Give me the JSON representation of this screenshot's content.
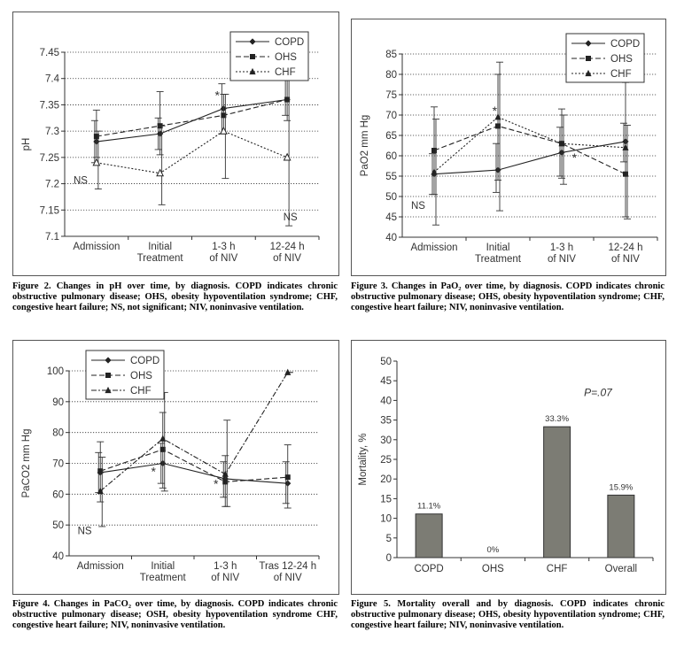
{
  "chart_data": [
    {
      "type": "line",
      "ylabel": "pH",
      "ylim": [
        7.1,
        7.45
      ],
      "yticks": [
        "7.1",
        "7.15",
        "7.2",
        "7.25",
        "7.3",
        "7.35",
        "7.4",
        "7.45"
      ],
      "categories": [
        [
          "Admission"
        ],
        [
          "Initial",
          "Treatment"
        ],
        [
          "1-3 h",
          "of NIV"
        ],
        [
          "12-24 h",
          "of NIV"
        ]
      ],
      "series": [
        {
          "name": "COPD",
          "marker": "diamond",
          "dash": "solid",
          "values": [
            7.28,
            7.295,
            7.343,
            7.36
          ],
          "upper": [
            7.32,
            7.325,
            7.39,
            7.4
          ],
          "lower": [
            7.24,
            7.265,
            7.295,
            7.33
          ]
        },
        {
          "name": "OHS",
          "marker": "square",
          "dash": "dashed",
          "values": [
            7.29,
            7.31,
            7.33,
            7.36
          ],
          "upper": [
            7.34,
            7.375,
            7.37,
            7.4
          ],
          "lower": [
            7.25,
            7.255,
            7.295,
            7.32
          ]
        },
        {
          "name": "CHF",
          "marker": "triangle-open",
          "dash": "dotted",
          "values": [
            7.24,
            7.22,
            7.3,
            7.25
          ],
          "upper": [
            7.3,
            7.31,
            7.37,
            7.4
          ],
          "lower": [
            7.19,
            7.16,
            7.21,
            7.12
          ]
        }
      ],
      "annotations": [
        {
          "text": "*",
          "x": 1.9,
          "y": 7.36
        },
        {
          "text": "NS",
          "x": -0.25,
          "y": 7.2
        },
        {
          "text": "NS",
          "x": 3.05,
          "y": 7.13
        }
      ]
    },
    {
      "type": "line",
      "ylabel": "PaO2 mm Hg",
      "ylim": [
        40,
        85
      ],
      "yticks": [
        "40",
        "45",
        "50",
        "55",
        "60",
        "65",
        "70",
        "75",
        "80",
        "85"
      ],
      "categories": [
        [
          "Admission"
        ],
        [
          "Initial",
          "Treatment"
        ],
        [
          "1-3 h",
          "of NIV"
        ],
        [
          "12-24 h",
          "of NIV"
        ]
      ],
      "series": [
        {
          "name": "COPD",
          "marker": "diamond",
          "dash": "solid",
          "values": [
            55.5,
            56.5,
            60.8,
            63.5
          ],
          "upper": [
            60.5,
            63,
            67,
            68
          ],
          "lower": [
            50.5,
            51,
            55,
            58.5
          ]
        },
        {
          "name": "OHS",
          "marker": "square",
          "dash": "dashed",
          "values": [
            61.3,
            67.3,
            63.0,
            55.5
          ],
          "upper": [
            72,
            80,
            71.5,
            78
          ],
          "lower": [
            50.5,
            54,
            54.5,
            45
          ]
        },
        {
          "name": "CHF",
          "marker": "triangle",
          "dash": "dotted",
          "values": [
            56,
            69.5,
            63,
            62
          ],
          "upper": [
            69,
            83,
            70,
            67.5
          ],
          "lower": [
            43,
            46.5,
            53,
            44.5
          ]
        }
      ],
      "annotations": [
        {
          "text": "*",
          "x": 0.95,
          "y": 70
        },
        {
          "text": "*",
          "x": 2.2,
          "y": 58.5
        },
        {
          "text": "NS",
          "x": -0.25,
          "y": 47
        }
      ]
    },
    {
      "type": "line",
      "ylabel": "PaCO2 mm Hg",
      "ylim": [
        40,
        100
      ],
      "yticks": [
        "40",
        "50",
        "60",
        "70",
        "80",
        "90",
        "100"
      ],
      "categories": [
        [
          "Admission"
        ],
        [
          "Initial",
          "Treatment"
        ],
        [
          "1-3 h",
          "of NIV"
        ],
        [
          "Tras 12-24 h",
          "of NIV"
        ]
      ],
      "series": [
        {
          "name": "COPD",
          "marker": "diamond",
          "dash": "solid",
          "values": [
            67,
            70,
            65,
            63.5
          ],
          "upper": [
            73.5,
            76.5,
            70.5,
            70.5
          ],
          "lower": [
            60.5,
            63.5,
            59,
            57
          ]
        },
        {
          "name": "OHS",
          "marker": "square",
          "dash": "dashed",
          "values": [
            67.5,
            74.5,
            64,
            65.5
          ],
          "upper": [
            77,
            86.5,
            72.5,
            76
          ],
          "lower": [
            57.5,
            62,
            56,
            55.5
          ]
        },
        {
          "name": "CHF",
          "marker": "triangle",
          "dash": "dashdot",
          "values": [
            61,
            78,
            66.5,
            99.5
          ],
          "upper": [
            72,
            93,
            84,
            99.5
          ],
          "lower": [
            49.5,
            61,
            56,
            99.5
          ]
        }
      ],
      "annotations": [
        {
          "text": "*",
          "x": 0.85,
          "y": 66
        },
        {
          "text": "*",
          "x": 1.85,
          "y": 62
        },
        {
          "text": "NS",
          "x": -0.25,
          "y": 47
        }
      ]
    },
    {
      "type": "bar",
      "ylabel": "Mortality, %",
      "ylim": [
        0,
        50
      ],
      "yticks": [
        "0",
        "5",
        "10",
        "15",
        "20",
        "25",
        "30",
        "35",
        "40",
        "45",
        "50"
      ],
      "categories": [
        "COPD",
        "OHS",
        "CHF",
        "Overall"
      ],
      "values": [
        11.1,
        0,
        33.3,
        15.9
      ],
      "value_labels": [
        "11.1%",
        "0%",
        "33.3%",
        "15.9%"
      ],
      "annotation": "P=.07",
      "bar_color": "#7c7c74"
    }
  ],
  "captions": [
    {
      "lead": "Figure 2.",
      "text": "Changes in pH over time, by diagnosis. COPD indicates chronic obstructive pulmonary disease; OHS, obesity hypoventilation syndrome; CHF, congestive heart failure; NS, not significant; NIV, noninvasive ventilation."
    },
    {
      "lead": "Figure 3.",
      "text": "Changes in PaO₂ over time, by diagnosis. COPD indicates chronic obstructive pulmonary disease; OHS, obesity hypoventilation syndrome; CHF, congestive heart failure; NIV, noninvasive ventilation."
    },
    {
      "lead": "Figure 4.",
      "text": "Changes in PaCO₂ over time, by diagnosis. COPD indicates chronic obstructive pulmonary disease; OSH, obesity hypoventilation syndrome CHF, congestive heart failure; NIV, noninvasive ventilation."
    },
    {
      "lead": "Figure 5.",
      "text": "Mortality overall and by diagnosis. COPD indicates chronic obstructive pulmonary disease; OHS, obesity hypoventilation syndrome; CHF, congestive heart failure; NIV, noninvasive ventilation."
    }
  ]
}
